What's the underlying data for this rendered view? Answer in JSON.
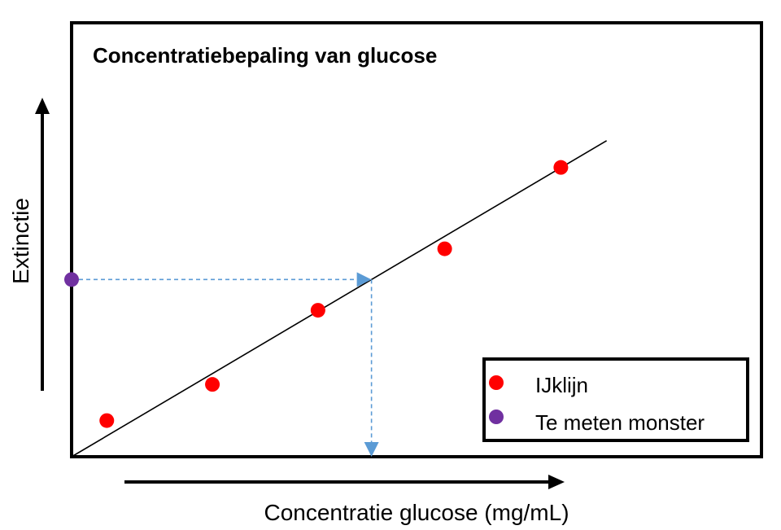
{
  "chart_data": {
    "type": "scatter",
    "title": "Concentratiebepaling van glucose",
    "xlabel": "Concentratie glucose (mg/mL)",
    "ylabel": "Extinctie",
    "series": [
      {
        "name": "IJklijn",
        "color": "#ff0000",
        "points": [
          [
            0.5,
            0.2
          ],
          [
            2.0,
            0.4
          ],
          [
            3.5,
            0.81
          ],
          [
            5.3,
            1.15
          ],
          [
            6.95,
            1.6
          ]
        ]
      },
      {
        "name": "Te meten monster",
        "color": "#7030a0",
        "points": [
          [
            0.0,
            0.98
          ]
        ]
      }
    ],
    "fit_line": {
      "slope": 0.23,
      "intercept": 0.0,
      "x_end": 7.6,
      "color": "#000000"
    },
    "reading": {
      "y": 0.98,
      "x": 4.26,
      "color": "#5b9bd5"
    },
    "xlim": [
      0,
      9.8
    ],
    "ylim": [
      0,
      2.4
    ],
    "ticks": false,
    "legend": {
      "position": "bottom-right"
    }
  }
}
